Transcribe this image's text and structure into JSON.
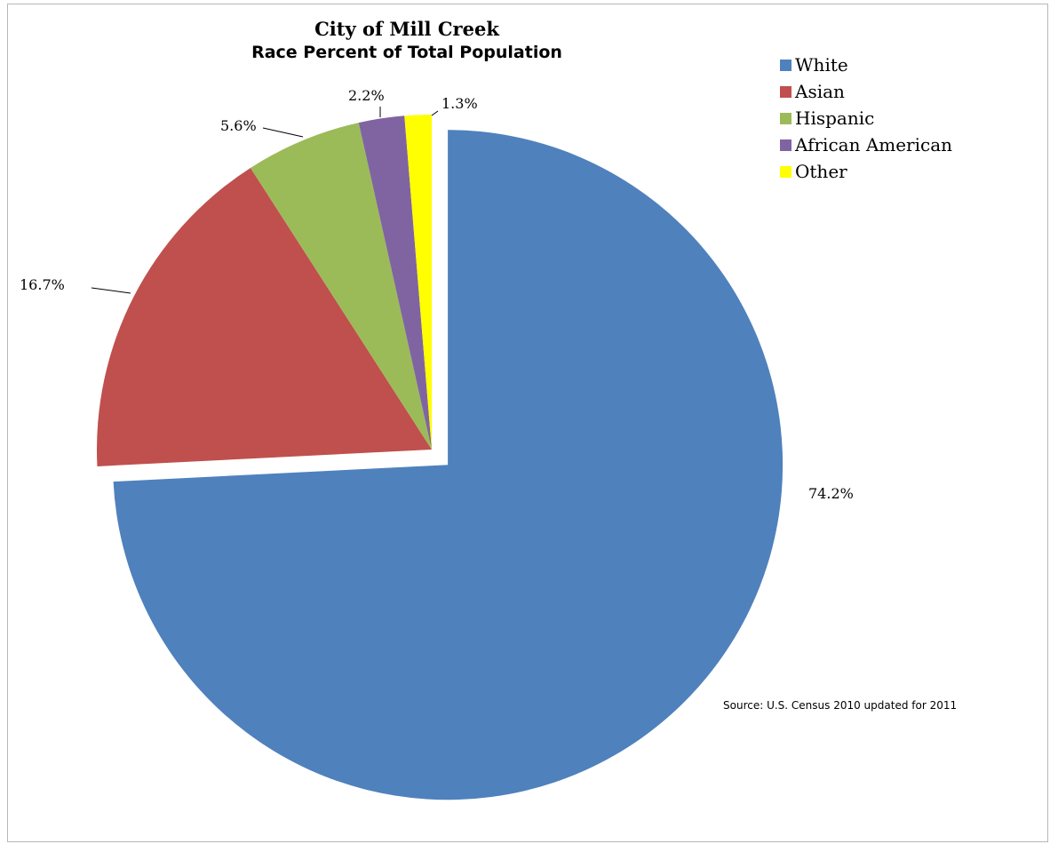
{
  "chart_data": {
    "type": "pie",
    "title": "City of Mill Creek",
    "subtitle": "Race Percent of Total Population",
    "series": [
      {
        "name": "White",
        "value": 74.2,
        "label": "74.2%",
        "color": "#4f81bd",
        "exploded": true
      },
      {
        "name": "Asian",
        "value": 16.7,
        "label": "16.7%",
        "color": "#c0504d",
        "exploded": false
      },
      {
        "name": "Hispanic",
        "value": 5.6,
        "label": "5.6%",
        "color": "#9bbb59",
        "exploded": false
      },
      {
        "name": "African American",
        "value": 2.2,
        "label": "2.2%",
        "color": "#8064a2",
        "exploded": false
      },
      {
        "name": "Other",
        "value": 1.3,
        "label": "1.3%",
        "color": "#ffff00",
        "exploded": false
      }
    ],
    "legend_position": "top-right",
    "source_note": "Source: U.S. Census 2010 updated for 2011"
  }
}
